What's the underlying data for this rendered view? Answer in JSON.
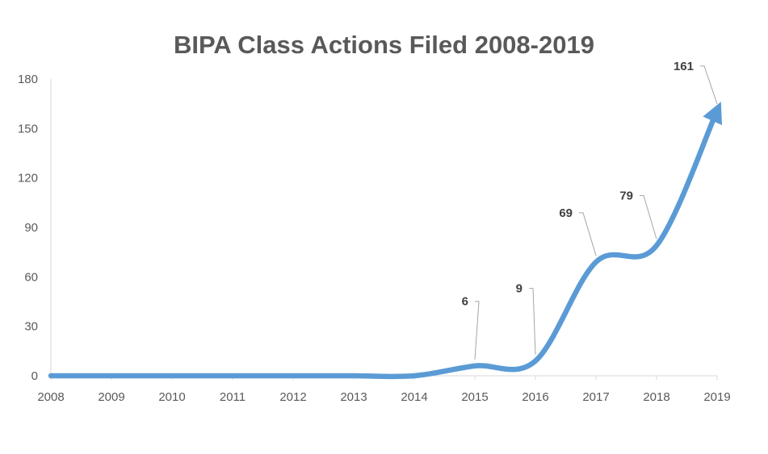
{
  "chart_data": {
    "type": "line",
    "title": "BIPA Class Actions Filed 2008-2019",
    "xlabel": "",
    "ylabel": "",
    "x": [
      "2008",
      "2009",
      "2010",
      "2011",
      "2012",
      "2013",
      "2014",
      "2015",
      "2016",
      "2017",
      "2018",
      "2019"
    ],
    "series": [
      {
        "values": [
          0,
          0,
          0,
          0,
          0,
          0,
          0,
          6,
          9,
          69,
          79,
          161
        ]
      }
    ],
    "data_labels": [
      {
        "x": "2015",
        "text": "6"
      },
      {
        "x": "2016",
        "text": "9"
      },
      {
        "x": "2017",
        "text": "69"
      },
      {
        "x": "2018",
        "text": "79"
      },
      {
        "x": "2019",
        "text": "161"
      }
    ],
    "yticks": [
      "0",
      "30",
      "60",
      "90",
      "120",
      "150",
      "180"
    ],
    "ylim": [
      0,
      180
    ],
    "smooth": true,
    "end_arrow": true,
    "grid": false,
    "line_color": "#5b9bd5",
    "axis_color": "#d9d9d9",
    "text_color": "#595959"
  }
}
